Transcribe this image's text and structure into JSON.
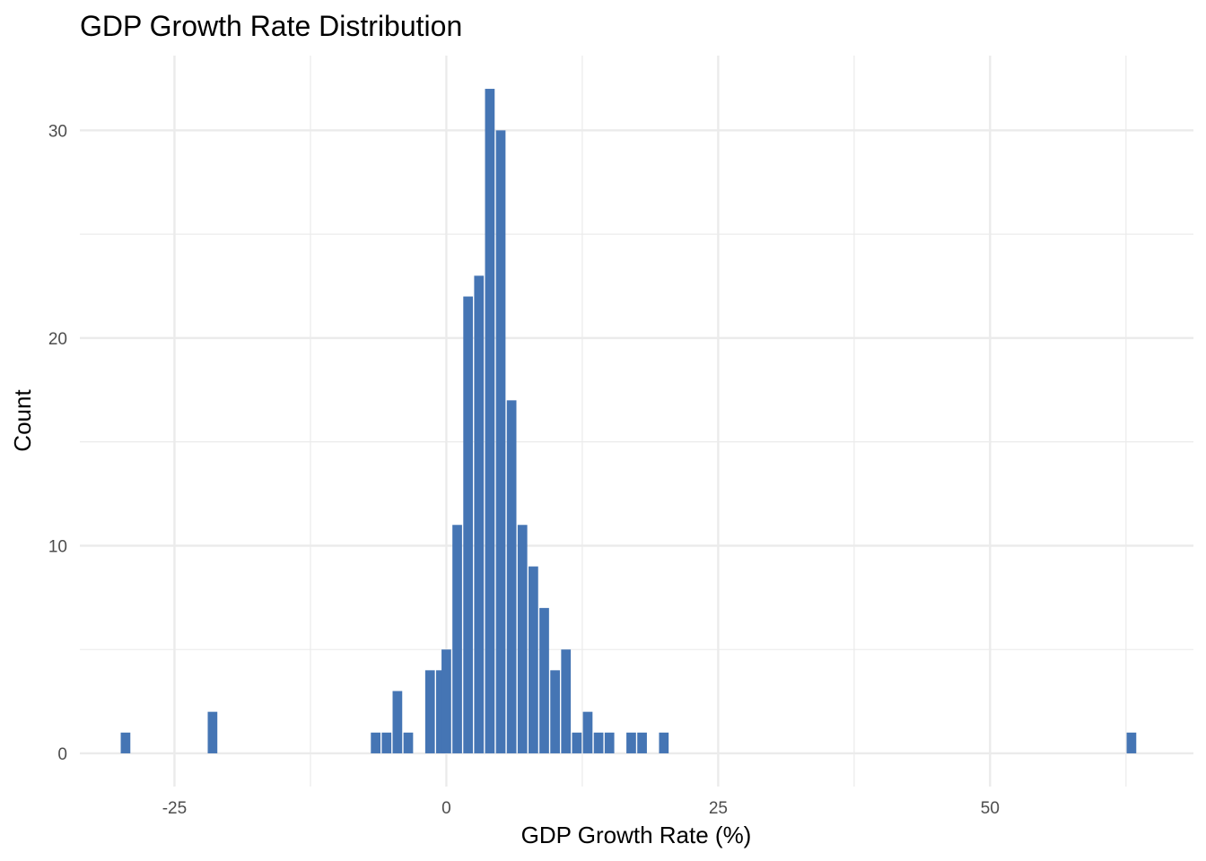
{
  "chart_data": {
    "type": "bar",
    "title": "GDP Growth Rate Distribution",
    "xlabel": "GDP Growth Rate (%)",
    "ylabel": "Count",
    "xlim": [
      -33.7,
      68.7
    ],
    "ylim": [
      -1.6,
      33.6
    ],
    "x_ticks": [
      -25,
      0,
      25,
      50
    ],
    "x_tick_labels": [
      "-25",
      "0",
      "25",
      "50"
    ],
    "x_minor_ticks": [
      -37.5,
      -12.5,
      12.5,
      37.5,
      62.5
    ],
    "y_ticks": [
      0,
      10,
      20,
      30
    ],
    "y_tick_labels": [
      "0",
      "10",
      "20",
      "30"
    ],
    "y_minor_ticks": [
      5,
      15,
      25
    ],
    "bin_width": 1.0,
    "grid": true,
    "bar_color": "#4575b4",
    "bins": [
      {
        "x": -29.5,
        "count": 1
      },
      {
        "x": -21.5,
        "count": 2
      },
      {
        "x": -6.5,
        "count": 1
      },
      {
        "x": -5.5,
        "count": 1
      },
      {
        "x": -4.5,
        "count": 3
      },
      {
        "x": -3.5,
        "count": 1
      },
      {
        "x": -1.5,
        "count": 4
      },
      {
        "x": -0.5,
        "count": 4
      },
      {
        "x": 0.0,
        "count": 5
      },
      {
        "x": 1.0,
        "count": 11
      },
      {
        "x": 2.0,
        "count": 22
      },
      {
        "x": 3.0,
        "count": 23
      },
      {
        "x": 4.0,
        "count": 32
      },
      {
        "x": 5.0,
        "count": 30
      },
      {
        "x": 6.0,
        "count": 17
      },
      {
        "x": 7.0,
        "count": 11
      },
      {
        "x": 8.0,
        "count": 9
      },
      {
        "x": 9.0,
        "count": 7
      },
      {
        "x": 10.0,
        "count": 4
      },
      {
        "x": 11.0,
        "count": 5
      },
      {
        "x": 12.0,
        "count": 1
      },
      {
        "x": 13.0,
        "count": 2
      },
      {
        "x": 14.0,
        "count": 1
      },
      {
        "x": 15.0,
        "count": 1
      },
      {
        "x": 17.0,
        "count": 1
      },
      {
        "x": 18.0,
        "count": 1
      },
      {
        "x": 20.0,
        "count": 1
      },
      {
        "x": 63.0,
        "count": 1
      }
    ]
  }
}
